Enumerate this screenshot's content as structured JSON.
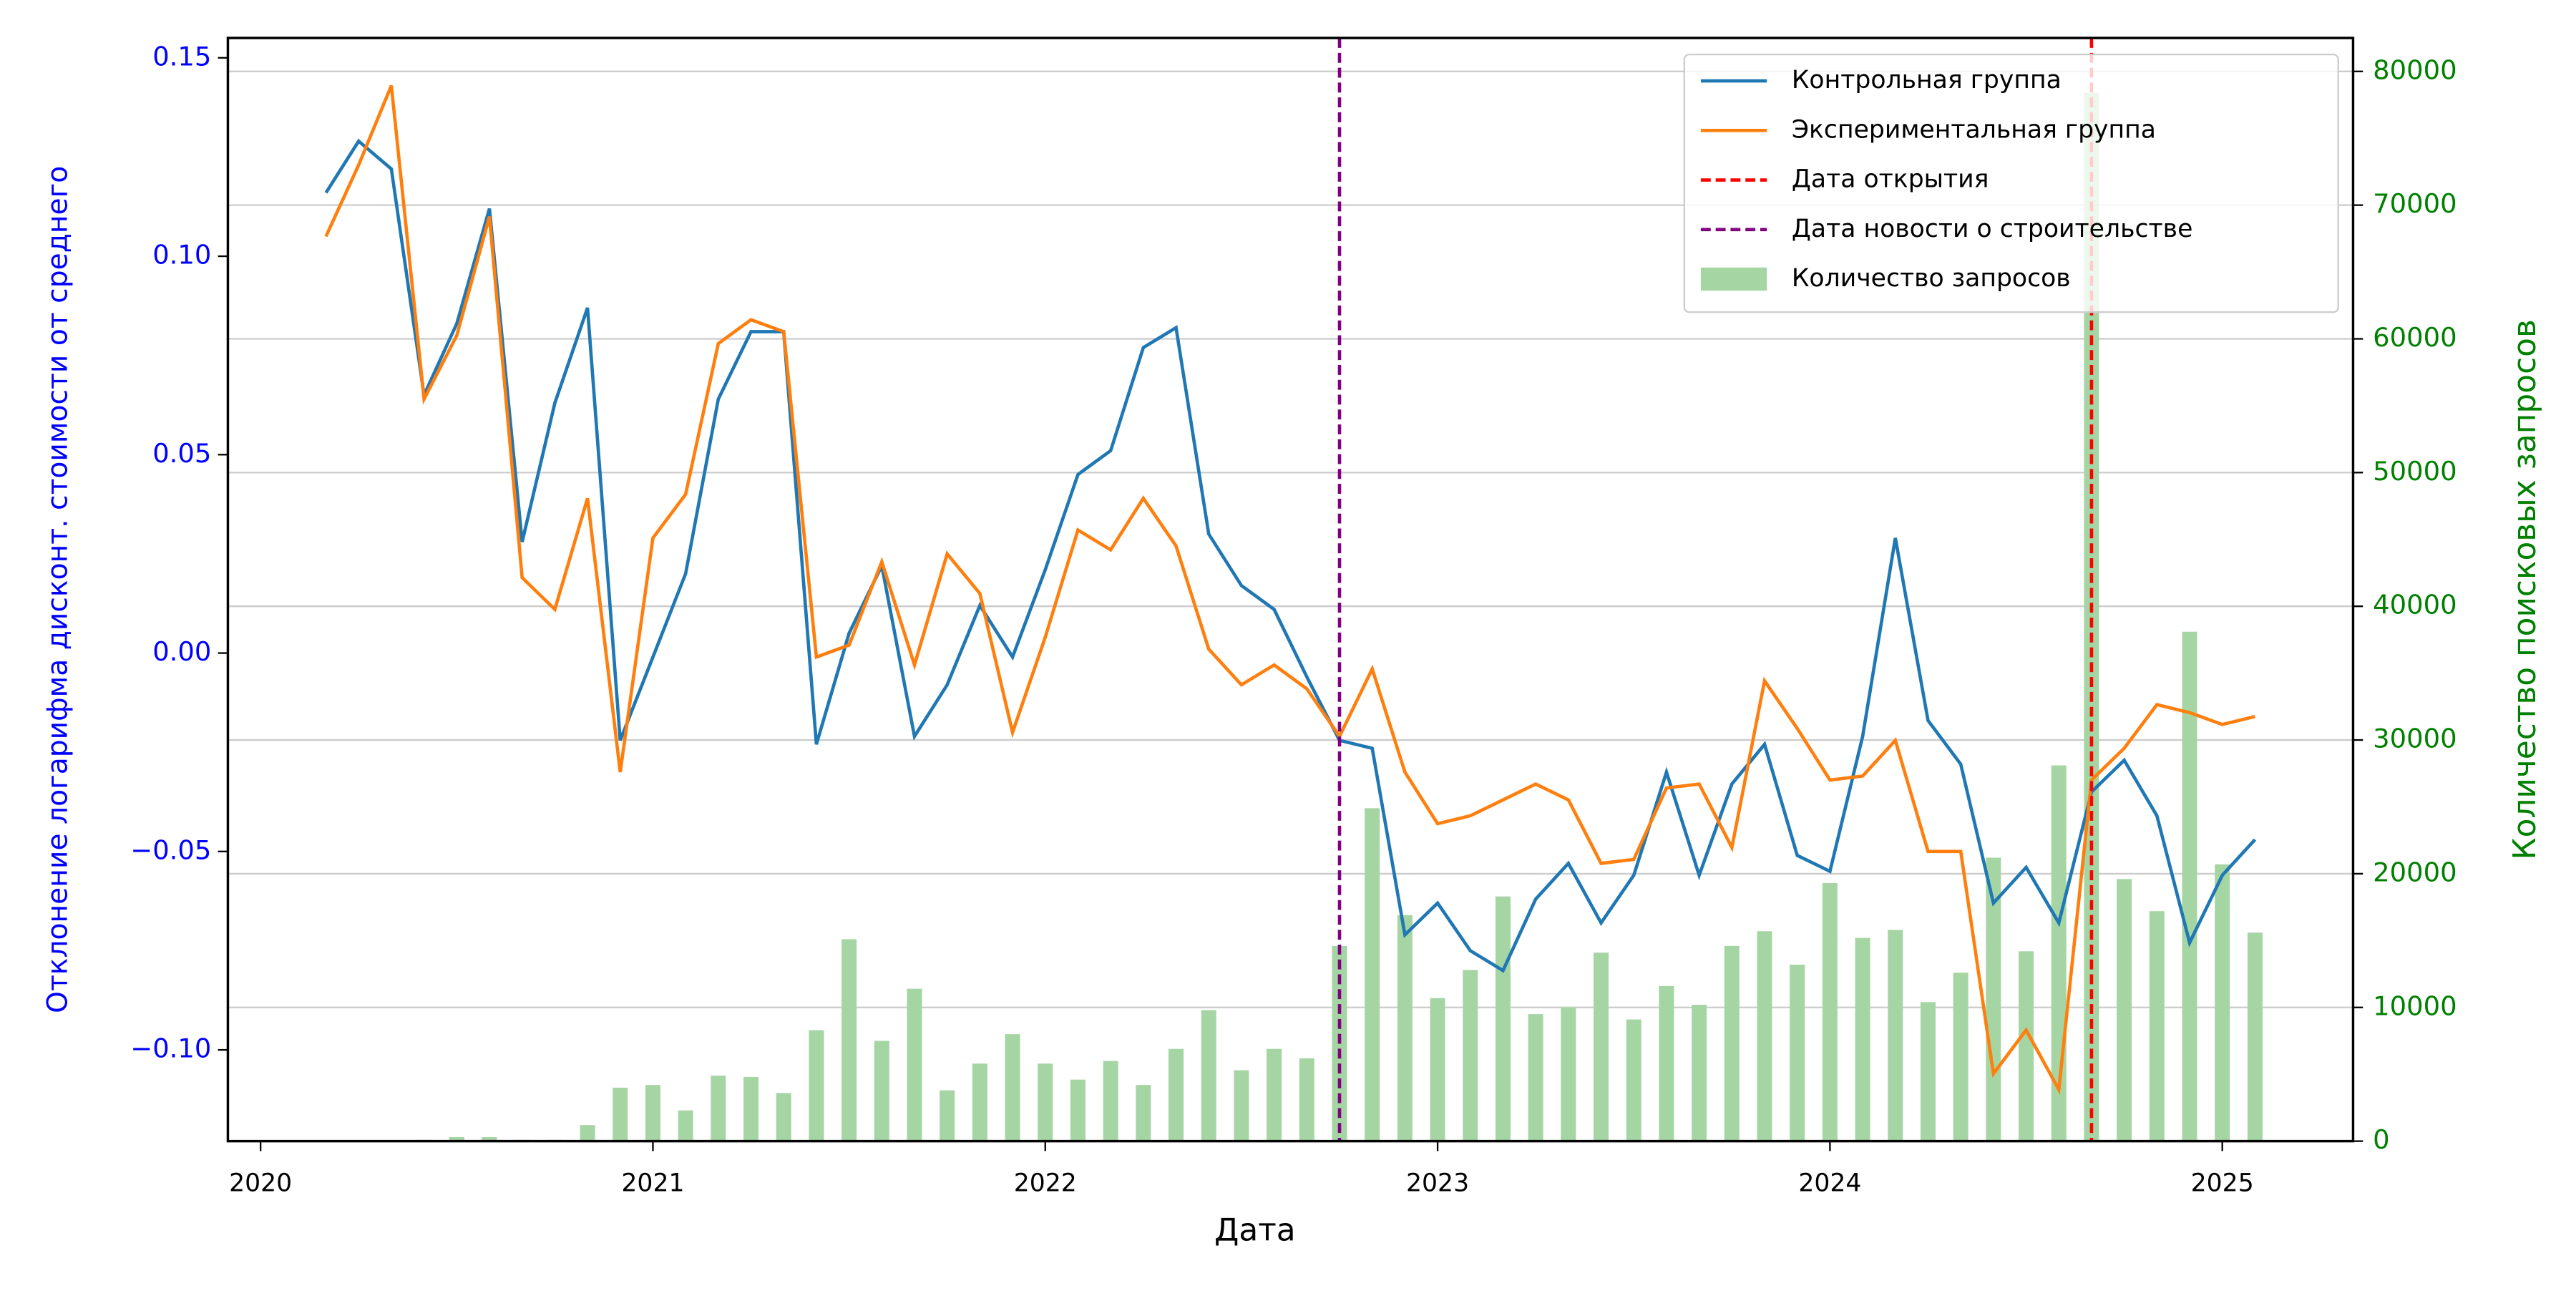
{
  "chart_data": {
    "type": "line",
    "xlabel": "Дата",
    "ylabel": "Отклонение логарифма дисконт. стоимости от среднего",
    "y2label": "Количество поисковых запросов",
    "x": [
      "2020-03",
      "2020-04",
      "2020-05",
      "2020-06",
      "2020-07",
      "2020-08",
      "2020-09",
      "2020-10",
      "2020-11",
      "2020-12",
      "2021-01",
      "2021-02",
      "2021-03",
      "2021-04",
      "2021-05",
      "2021-06",
      "2021-07",
      "2021-08",
      "2021-09",
      "2021-10",
      "2021-11",
      "2021-12",
      "2022-01",
      "2022-02",
      "2022-03",
      "2022-04",
      "2022-05",
      "2022-06",
      "2022-07",
      "2022-08",
      "2022-09",
      "2022-10",
      "2022-11",
      "2022-12",
      "2023-01",
      "2023-02",
      "2023-03",
      "2023-04",
      "2023-05",
      "2023-06",
      "2023-07",
      "2023-08",
      "2023-09",
      "2023-10",
      "2023-11",
      "2023-12",
      "2024-01",
      "2024-02",
      "2024-03",
      "2024-04",
      "2024-05",
      "2024-06",
      "2024-07",
      "2024-08",
      "2024-09",
      "2024-10",
      "2024-11",
      "2024-12",
      "2025-01",
      "2025-02"
    ],
    "series": [
      {
        "name": "Контрольная группа",
        "color": "#1f77b4",
        "values": [
          0.116,
          0.129,
          0.122,
          0.065,
          0.083,
          0.112,
          0.028,
          0.063,
          0.087,
          -0.022,
          -0.001,
          0.02,
          0.064,
          0.081,
          0.081,
          -0.023,
          0.005,
          0.022,
          -0.021,
          -0.008,
          0.012,
          -0.001,
          0.021,
          0.045,
          0.051,
          0.077,
          0.082,
          0.03,
          0.017,
          0.011,
          -0.006,
          -0.022,
          -0.024,
          -0.071,
          -0.063,
          -0.075,
          -0.08,
          -0.062,
          -0.053,
          -0.068,
          -0.056,
          -0.03,
          -0.056,
          -0.033,
          -0.023,
          -0.051,
          -0.055,
          -0.021,
          0.029,
          -0.017,
          -0.028,
          -0.063,
          -0.054,
          -0.068,
          -0.035,
          -0.027,
          -0.041,
          -0.073,
          -0.056,
          -0.047
        ]
      },
      {
        "name": "Экспериментальная группа",
        "color": "#ff7f0e",
        "values": [
          0.105,
          0.123,
          0.143,
          0.064,
          0.08,
          0.11,
          0.019,
          0.011,
          0.039,
          -0.03,
          0.029,
          0.04,
          0.078,
          0.084,
          0.081,
          -0.001,
          0.002,
          0.023,
          -0.003,
          0.025,
          0.015,
          -0.02,
          0.004,
          0.031,
          0.026,
          0.039,
          0.027,
          0.001,
          -0.008,
          -0.003,
          -0.009,
          -0.021,
          -0.004,
          -0.03,
          -0.043,
          -0.041,
          -0.037,
          -0.033,
          -0.037,
          -0.053,
          -0.052,
          -0.034,
          -0.033,
          -0.049,
          -0.007,
          -0.019,
          -0.032,
          -0.031,
          -0.022,
          -0.05,
          -0.05,
          -0.106,
          -0.095,
          -0.11,
          -0.032,
          -0.024,
          -0.013,
          -0.015,
          -0.018,
          -0.016
        ]
      },
      {
        "name": "Количество запросов",
        "type": "bar",
        "axis": "y2",
        "color": "#a6d5a4",
        "values": [
          0,
          0,
          0,
          100,
          300,
          300,
          100,
          100,
          1200,
          4000,
          4200,
          2300,
          4900,
          4800,
          3600,
          8300,
          15100,
          7500,
          11400,
          3800,
          5800,
          8000,
          5800,
          4600,
          6000,
          4200,
          6900,
          9800,
          5300,
          6900,
          6200,
          14600,
          24900,
          16900,
          10700,
          12800,
          18300,
          9500,
          10000,
          14100,
          9100,
          11600,
          10200,
          14600,
          15700,
          13200,
          19300,
          15200,
          15800,
          10400,
          12600,
          21200,
          14200,
          28100,
          78400,
          19600,
          17200,
          38100,
          20700,
          15600
        ]
      }
    ],
    "vlines": [
      {
        "name": "Дата открытия",
        "x": "2024-09",
        "color": "#ff0000"
      },
      {
        "name": "Дата новости о строительстве",
        "x": "2022-10",
        "color": "#800080"
      }
    ],
    "xlim": [
      "2019-12",
      "2025-05"
    ],
    "xticks": [
      2020,
      2021,
      2022,
      2023,
      2024,
      2025
    ],
    "ylim": [
      -0.123,
      0.155
    ],
    "yticks": [
      {
        "value": -0.1,
        "label": "−0.10"
      },
      {
        "value": -0.05,
        "label": "−0.05"
      },
      {
        "value": 0,
        "label": "0.00"
      },
      {
        "value": 0.05,
        "label": "0.05"
      },
      {
        "value": 0.1,
        "label": "0.10"
      },
      0.15
    ],
    "y2lim": [
      0,
      82500
    ],
    "y2ticks": [
      0,
      10000,
      20000,
      30000,
      40000,
      50000,
      60000,
      70000,
      80000
    ],
    "grid": "y2",
    "legend": "upper right",
    "ycolor": "#0000ff",
    "y2color": "#008000"
  }
}
